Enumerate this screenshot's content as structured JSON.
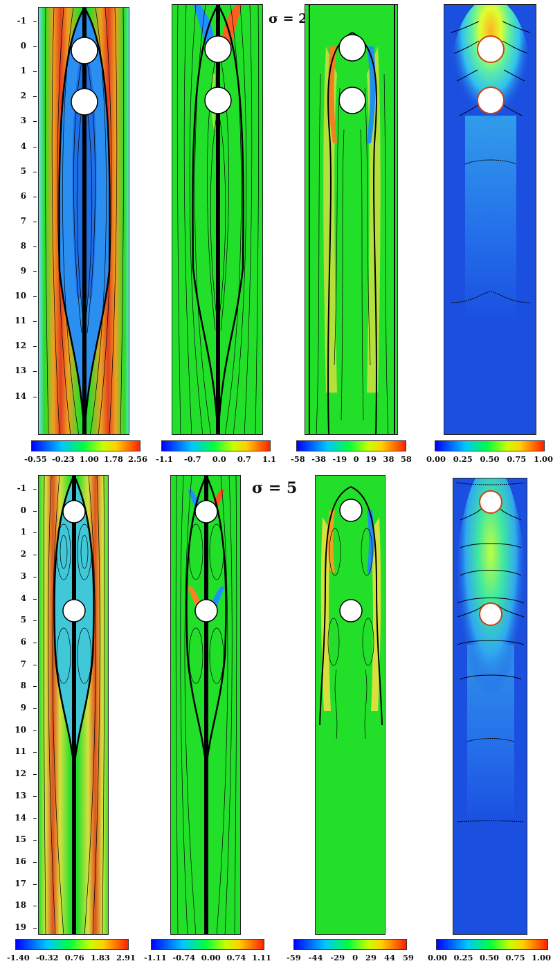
{
  "rows": [
    {
      "sigma_label": "σ = 2",
      "y_ticks": [
        "-1",
        "0",
        "1",
        "2",
        "3",
        "4",
        "5",
        "6",
        "7",
        "8",
        "9",
        "10",
        "11",
        "12",
        "13",
        "14"
      ],
      "colorbars": [
        {
          "ticks": [
            "-0.55",
            "-0.23",
            "1.00",
            "1.78",
            "2.56"
          ]
        },
        {
          "ticks": [
            "-1.1",
            "-0.7",
            "0.0",
            "0.7",
            "1.1"
          ]
        },
        {
          "ticks": [
            "-58",
            "-38",
            "-19",
            "0",
            "19",
            "38",
            "58"
          ]
        },
        {
          "ticks": [
            "0.00",
            "0.25",
            "0.50",
            "0.75",
            "1.00"
          ]
        }
      ]
    },
    {
      "sigma_label": "σ = 5",
      "y_ticks": [
        "-1",
        "0",
        "1",
        "2",
        "3",
        "4",
        "5",
        "6",
        "7",
        "8",
        "9",
        "10",
        "11",
        "12",
        "13",
        "14",
        "15",
        "16",
        "17",
        "18",
        "19"
      ],
      "colorbars": [
        {
          "ticks": [
            "-1.40",
            "-0.32",
            "0.76",
            "1.83",
            "2.91"
          ]
        },
        {
          "ticks": [
            "-1.11",
            "-0.74",
            "0.00",
            "0.74",
            "1.11"
          ]
        },
        {
          "ticks": [
            "-59",
            "-44",
            "-29",
            "0",
            "29",
            "44",
            "59"
          ]
        },
        {
          "ticks": [
            "0.00",
            "0.25",
            "0.50",
            "0.75",
            "1.00"
          ]
        }
      ]
    }
  ],
  "colors": {
    "background_field": "#22e02a",
    "concentration_background": "#1a4fe0",
    "streamline": "#000000",
    "particle": "#ffffff"
  }
}
